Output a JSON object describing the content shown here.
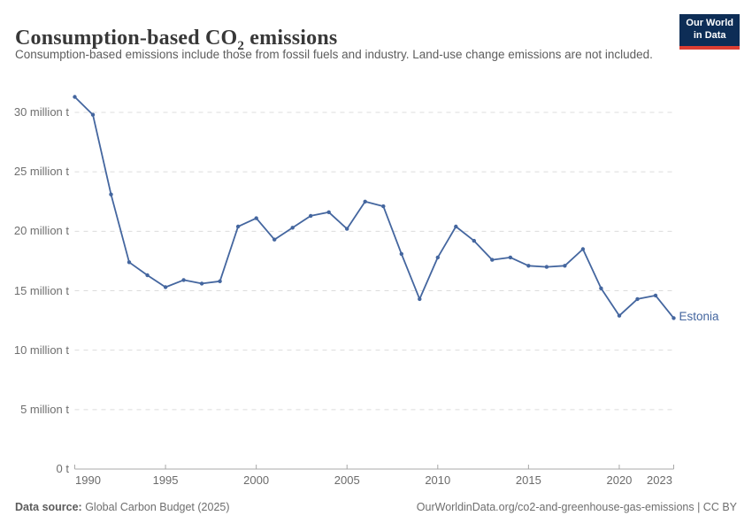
{
  "header": {
    "title_pre": "Consumption-based CO",
    "title_sub": "2",
    "title_post": " emissions",
    "subtitle": "Consumption-based emissions include those from fossil fuels and industry. Land-use change emissions are not included.",
    "logo": {
      "line1": "Our World",
      "line2": "in Data",
      "bg_color": "#0d2d56",
      "accent_color": "#dc3e32"
    }
  },
  "footer": {
    "source_label": "Data source:",
    "source_value": " Global Carbon Budget (2025)",
    "link": "OurWorldinData.org/co2-and-greenhouse-gas-emissions | CC BY"
  },
  "chart_data": {
    "type": "line",
    "title": "Consumption-based CO₂ emissions",
    "unit": "million t",
    "x": [
      1990,
      1991,
      1992,
      1993,
      1994,
      1995,
      1996,
      1997,
      1998,
      1999,
      2000,
      2001,
      2002,
      2003,
      2004,
      2005,
      2006,
      2007,
      2008,
      2009,
      2010,
      2011,
      2012,
      2013,
      2014,
      2015,
      2016,
      2017,
      2018,
      2019,
      2020,
      2021,
      2022,
      2023
    ],
    "series": [
      {
        "name": "Estonia",
        "values": [
          31.3,
          29.8,
          23.1,
          17.4,
          16.3,
          15.3,
          15.9,
          15.6,
          15.8,
          20.4,
          21.1,
          19.3,
          20.3,
          21.3,
          21.6,
          20.2,
          22.5,
          22.1,
          18.1,
          14.3,
          17.8,
          20.4,
          19.2,
          17.6,
          17.8,
          17.1,
          17.0,
          17.1,
          18.5,
          15.2,
          12.9,
          14.3,
          14.6,
          12.7
        ]
      }
    ],
    "y_ticks": [
      {
        "value": 0,
        "label": "0 t"
      },
      {
        "value": 5,
        "label": "5 million t"
      },
      {
        "value": 10,
        "label": "10 million t"
      },
      {
        "value": 15,
        "label": "15 million t"
      },
      {
        "value": 20,
        "label": "20 million t"
      },
      {
        "value": 25,
        "label": "25 million t"
      },
      {
        "value": 30,
        "label": "30 million t"
      }
    ],
    "x_ticks": [
      1990,
      1995,
      2000,
      2005,
      2010,
      2015,
      2020,
      2023
    ],
    "xlim": [
      1990,
      2023
    ],
    "ylim": [
      0,
      30
    ],
    "grid": "dashed-horizontal",
    "legend_position": "end-of-line",
    "colors": {
      "line": "#44669f",
      "grid": "#dcdcdc",
      "axis": "#a8a8a8"
    }
  }
}
